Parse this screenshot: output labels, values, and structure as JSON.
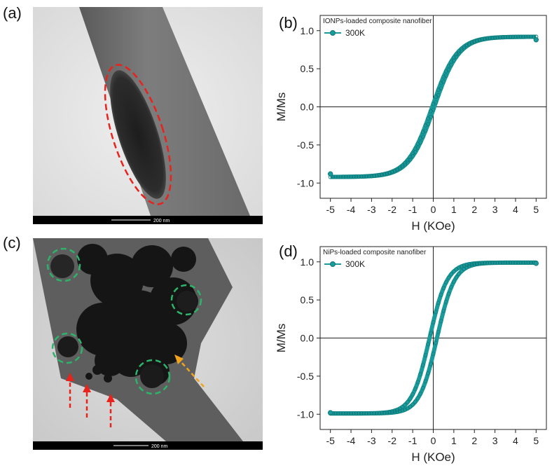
{
  "panels": {
    "a": {
      "label": "(a)",
      "scale_text": "200 nm"
    },
    "b": {
      "label": "(b)"
    },
    "c": {
      "label": "(c)",
      "scale_text": "200 nm"
    },
    "d": {
      "label": "(d)"
    }
  },
  "colors": {
    "series": "#1a9a9a",
    "ellipse_annotation": "#e8221c",
    "circle_annotation": "#2db36a",
    "arrow_red": "#e8221c",
    "arrow_orange": "#f2a31c"
  },
  "chart_data": [
    {
      "panel": "b",
      "type": "line",
      "legend_title": "IONPs-loaded composite nanofiber",
      "series": [
        {
          "name": "300K",
          "model": "tanh",
          "Ms_fraction": 0.92,
          "H0": 1.2,
          "coercivity": 0.05
        }
      ],
      "xlabel": "H (KOe)",
      "ylabel": "M/Ms",
      "xlim": [
        -5.5,
        5.5
      ],
      "ylim": [
        -1.2,
        1.2
      ],
      "xticks": [
        -5,
        -4,
        -3,
        -2,
        -1,
        0,
        1,
        2,
        3,
        4,
        5
      ],
      "yticks": [
        -1.0,
        -0.5,
        0.0,
        0.5,
        1.0
      ],
      "ytick_labels": [
        "-1.0",
        "-0.5",
        "0.0",
        "0.5",
        "1.0"
      ],
      "endpoints": {
        "x": [
          -5,
          5
        ],
        "y": [
          -0.88,
          0.88
        ]
      },
      "legend_position": "top-left"
    },
    {
      "panel": "d",
      "type": "line",
      "legend_title": "NiPs-loaded composite nanofiber",
      "series": [
        {
          "name": "300K",
          "model": "tanh",
          "Ms_fraction": 0.99,
          "H0": 0.85,
          "coercivity": 0.18
        }
      ],
      "xlabel": "H (KOe)",
      "ylabel": "M/Ms",
      "xlim": [
        -5.5,
        5.5
      ],
      "ylim": [
        -1.2,
        1.2
      ],
      "xticks": [
        -5,
        -4,
        -3,
        -2,
        -1,
        0,
        1,
        2,
        3,
        4,
        5
      ],
      "yticks": [
        -1.0,
        -0.5,
        0.0,
        0.5,
        1.0
      ],
      "ytick_labels": [
        "-1.0",
        "-0.5",
        "0.0",
        "0.5",
        "1.0"
      ],
      "endpoints": {
        "x": [
          -5,
          5
        ],
        "y": [
          -0.98,
          0.98
        ]
      },
      "legend_position": "top-left"
    }
  ]
}
